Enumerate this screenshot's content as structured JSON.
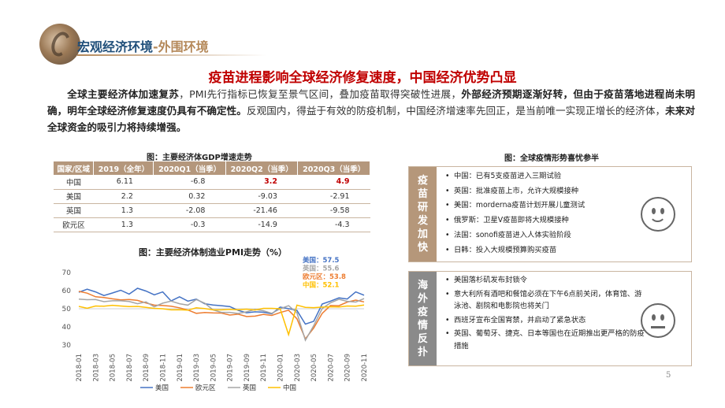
{
  "header": {
    "title": "宏观经济环境",
    "separator": "-",
    "subtitle": "外围环境"
  },
  "main_title": "疫苗进程影响全球经济修复速度，中国经济优势凸显",
  "intro": {
    "p1_bold": "全球主要经济体加速复苏",
    "p2": "，PMI先行指标已恢复至景气区间，叠加疫苗取得突破性进展，",
    "p3_bold": "外部经济预期逐渐好转，但由于疫苗落地进程尚未明确，明年全球经济修复速度仍具有不确定性。",
    "p4": "反观国内，得益于有效的防疫机制，中国经济增速率先回正，是当前唯一实现正增长的经济体，",
    "p5_bold": "未来对全球资金的吸引力将持续增强。"
  },
  "gdp_table": {
    "caption": "图：主要经济体GDP增速走势",
    "headers": [
      "国家/区域",
      "2019（全年）",
      "2020Q1（当季）",
      "2020Q2（当季）",
      "2020Q3（当季）"
    ],
    "rows": [
      [
        "中国",
        "6.11",
        "-6.8",
        "3.2",
        "4.9"
      ],
      [
        "美国",
        "2.2",
        "0.32",
        "-9.03",
        "-2.91"
      ],
      [
        "英国",
        "1.3",
        "-2.08",
        "-21.46",
        "-9.58"
      ],
      [
        "欧元区",
        "1.3",
        "-0.3",
        "-14.9",
        "-4.3"
      ]
    ]
  },
  "chart_data": {
    "type": "line",
    "title": "图：主要经济体制造业PMI走势（%）",
    "ylim": [
      30,
      70
    ],
    "yticks": [
      "70",
      "60",
      "50",
      "40",
      "30"
    ],
    "x": [
      "2018-01",
      "2018-02",
      "2018-03",
      "2018-04",
      "2018-05",
      "2018-06",
      "2018-07",
      "2018-08",
      "2018-09",
      "2018-10",
      "2018-11",
      "2018-12",
      "2019-01",
      "2019-02",
      "2019-03",
      "2019-04",
      "2019-05",
      "2019-06",
      "2019-07",
      "2019-08",
      "2019-09",
      "2019-10",
      "2019-11",
      "2019-12",
      "2020-01",
      "2020-02",
      "2020-03",
      "2020-04",
      "2020-05",
      "2020-06",
      "2020-07",
      "2020-08",
      "2020-09",
      "2020-10",
      "2020-11"
    ],
    "xtick_labels": [
      "2018-01",
      "2018-03",
      "2018-05",
      "2018-07",
      "2018-09",
      "2018-11",
      "2019-01",
      "2019-03",
      "2019-05",
      "2019-07",
      "2019-09",
      "2019-11",
      "2020-01",
      "2020-03",
      "2020-05",
      "2020-07",
      "2020-09",
      "2020-11"
    ],
    "series": [
      {
        "name": "美国",
        "color": "#4472c4",
        "values": [
          59.1,
          60.8,
          59.3,
          57.3,
          58.7,
          60.2,
          58.1,
          61.3,
          59.8,
          57.7,
          59.3,
          54.3,
          56.6,
          54.2,
          55.3,
          52.8,
          52.1,
          51.7,
          51.2,
          49.1,
          47.8,
          48.3,
          48.1,
          47.2,
          50.9,
          50.1,
          49.1,
          41.5,
          43.1,
          52.6,
          54.2,
          56.0,
          55.4,
          59.3,
          57.5
        ]
      },
      {
        "name": "欧元区",
        "color": "#ed7d31",
        "values": [
          59.6,
          58.6,
          56.6,
          56.2,
          55.5,
          54.9,
          55.1,
          54.6,
          53.2,
          52.0,
          51.8,
          51.4,
          50.5,
          49.3,
          47.5,
          47.9,
          47.7,
          47.6,
          46.5,
          47.0,
          45.7,
          45.9,
          46.9,
          46.3,
          47.9,
          49.2,
          44.5,
          33.4,
          39.4,
          47.4,
          51.8,
          51.7,
          53.7,
          54.8,
          53.8
        ]
      },
      {
        "name": "英国",
        "color": "#a5a5a5",
        "values": [
          55.3,
          55.0,
          55.1,
          53.9,
          54.4,
          54.4,
          54.0,
          52.8,
          53.8,
          51.1,
          53.1,
          54.2,
          52.8,
          52.0,
          55.1,
          53.1,
          49.4,
          48.0,
          48.0,
          47.4,
          48.3,
          49.6,
          48.9,
          47.5,
          50.0,
          51.7,
          47.8,
          32.6,
          40.7,
          50.1,
          53.3,
          55.2,
          54.1,
          53.7,
          55.6
        ]
      },
      {
        "name": "中国",
        "color": "#ffc000",
        "values": [
          51.3,
          50.3,
          51.5,
          51.4,
          51.9,
          51.5,
          51.2,
          51.3,
          50.8,
          50.2,
          50.0,
          49.4,
          49.5,
          49.2,
          50.5,
          50.1,
          49.4,
          49.4,
          49.7,
          49.5,
          49.8,
          49.3,
          50.2,
          50.2,
          50.0,
          35.7,
          52.0,
          50.8,
          50.6,
          50.9,
          51.1,
          51.0,
          51.5,
          51.4,
          52.1
        ]
      }
    ],
    "end_labels": [
      {
        "text": "美国：57.5",
        "color": "#4472c4"
      },
      {
        "text": "英国：55.6",
        "color": "#a5a5a5"
      },
      {
        "text": "欧元区：53.8",
        "color": "#ed7d31"
      },
      {
        "text": "中国：52.1",
        "color": "#ffc000"
      }
    ],
    "legend_position": "bottom",
    "grid": false
  },
  "epidemic": {
    "caption": "图：全球疫情形势喜忧参半",
    "good": {
      "label": [
        "疫",
        "苗",
        "研",
        "发",
        "加",
        "快"
      ],
      "items": [
        "中国：已有5支疫苗进入三期试验",
        "英国：批准疫苗上市，允许大规模接种",
        "美国：morderna疫苗计划开展儿童测试",
        "俄罗斯：卫星V疫苗即将大规模接种",
        "法国：sonofi疫苗进入人体实验阶段",
        "日韩：投入大规模预算购买疫苗"
      ],
      "icon": "smiley-face-icon"
    },
    "bad": {
      "label": [
        "海",
        "外",
        "疫",
        "情",
        "反",
        "扑"
      ],
      "items": [
        "美国落杉矶发布封锁令",
        "意大利所有酒吧和餐馆必须在下午6点前关闭，体育馆、游泳池、剧院和电影院也将关门",
        "西班牙宣布全国宵禁，并启动了紧急状态",
        "英国、葡萄牙、捷克、日本等国也在近期推出更严格的防疫措施"
      ],
      "icon": "neutral-face-icon"
    }
  },
  "page_number": "5"
}
